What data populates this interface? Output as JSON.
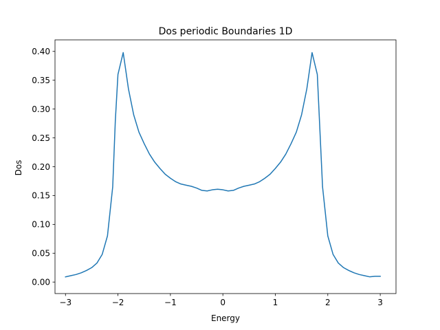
{
  "chart_data": {
    "type": "line",
    "title": "Dos periodic Boundaries 1D",
    "xlabel": "Energy",
    "ylabel": "Dos",
    "xlim": [
      -3.2,
      3.3
    ],
    "ylim": [
      -0.02,
      0.42
    ],
    "x_ticks": [
      -3,
      -2,
      -1,
      0,
      1,
      2,
      3
    ],
    "x_tick_labels": [
      "−3",
      "−2",
      "−1",
      "0",
      "1",
      "2",
      "3"
    ],
    "y_ticks": [
      0.0,
      0.05,
      0.1,
      0.15,
      0.2,
      0.25,
      0.3,
      0.35,
      0.4
    ],
    "y_tick_labels": [
      "0.00",
      "0.05",
      "0.10",
      "0.15",
      "0.20",
      "0.25",
      "0.30",
      "0.35",
      "0.40"
    ],
    "grid": false,
    "line_color": "#1f77b4",
    "series": [
      {
        "x": [
          -3.0,
          -2.9,
          -2.8,
          -2.7,
          -2.6,
          -2.5,
          -2.4,
          -2.3,
          -2.2,
          -2.1,
          -2.05,
          -2.0,
          -1.9,
          -1.8,
          -1.7,
          -1.6,
          -1.5,
          -1.4,
          -1.3,
          -1.2,
          -1.1,
          -1.0,
          -0.9,
          -0.8,
          -0.7,
          -0.6,
          -0.5,
          -0.4,
          -0.3,
          -0.2,
          -0.1,
          0.0,
          0.1,
          0.2,
          0.3,
          0.4,
          0.5,
          0.6,
          0.7,
          0.8,
          0.9,
          1.0,
          1.1,
          1.2,
          1.3,
          1.4,
          1.5,
          1.6,
          1.7,
          1.8,
          1.9,
          2.0,
          2.1,
          2.2,
          2.3,
          2.4,
          2.5,
          2.6,
          2.7,
          2.8,
          2.9,
          3.0
        ],
        "y": [
          0.009,
          0.011,
          0.013,
          0.016,
          0.02,
          0.025,
          0.033,
          0.048,
          0.08,
          0.165,
          0.28,
          0.36,
          0.398,
          0.335,
          0.29,
          0.26,
          0.24,
          0.222,
          0.208,
          0.197,
          0.187,
          0.18,
          0.174,
          0.17,
          0.168,
          0.166,
          0.163,
          0.159,
          0.158,
          0.16,
          0.161,
          0.16,
          0.158,
          0.159,
          0.163,
          0.166,
          0.168,
          0.17,
          0.174,
          0.18,
          0.187,
          0.197,
          0.208,
          0.222,
          0.24,
          0.26,
          0.29,
          0.335,
          0.398,
          0.36,
          0.165,
          0.08,
          0.048,
          0.033,
          0.025,
          0.02,
          0.016,
          0.013,
          0.011,
          0.009,
          0.01,
          0.01
        ]
      }
    ]
  }
}
